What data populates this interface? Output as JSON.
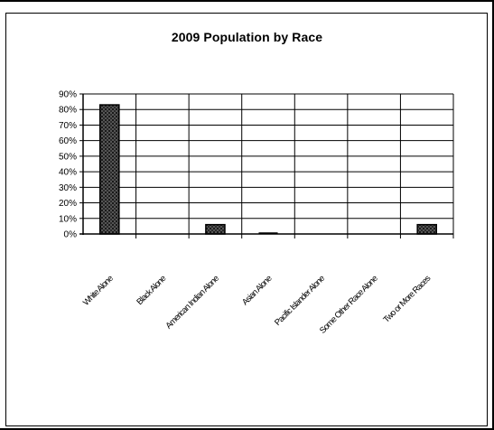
{
  "chart_data": {
    "type": "bar",
    "title": "2009 Population by Race",
    "xlabel": "",
    "ylabel": "",
    "categories": [
      "White Alone",
      "Black Alone",
      "American Indian Alone",
      "Asian Alone",
      "Pacific Islander Alone",
      "Some Other Race Alone",
      "Two or More Races"
    ],
    "values": [
      83,
      0,
      6,
      0.5,
      0,
      0,
      6
    ],
    "ylim": [
      0,
      90
    ],
    "yticks": [
      "0%",
      "10%",
      "20%",
      "30%",
      "40%",
      "50%",
      "60%",
      "70%",
      "80%",
      "90%"
    ],
    "grid": true,
    "legend": "none"
  }
}
